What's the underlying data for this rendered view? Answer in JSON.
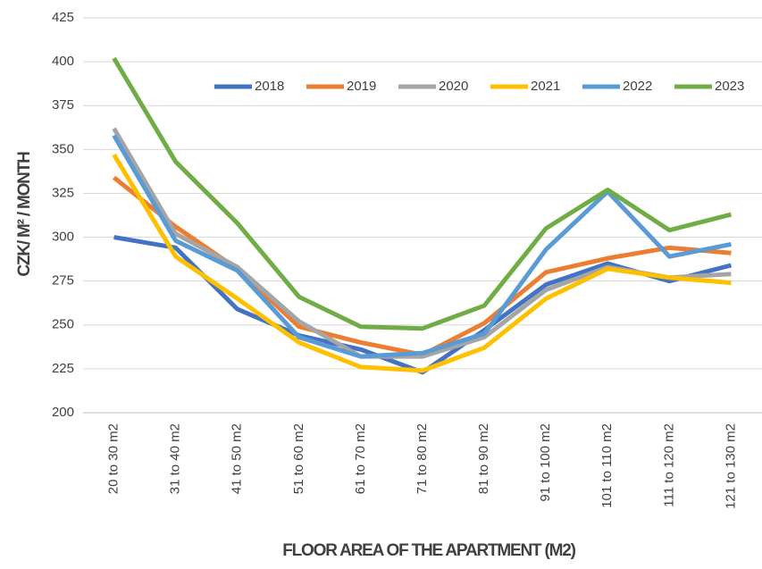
{
  "chart_data": {
    "type": "line",
    "ylabel": "CZK/ M² / MONTH",
    "xlabel": "FLOOR AREA OF THE APARTMENT (M2)",
    "categories": [
      "20 to 30 m2",
      "31 to 40 m2",
      "41 to 50 m2",
      "51 to 60 m2",
      "61 to 70 m2",
      "71 to 80 m2",
      "81 to 90 m2",
      "91 to 100 m2",
      "101 to 110 m2",
      "111 to 120 m2",
      "121 to 130 m2"
    ],
    "series": [
      {
        "name": "2018",
        "color": "#4472c4",
        "values": [
          300,
          294,
          259,
          244,
          236,
          223,
          247,
          273,
          285,
          275,
          284
        ]
      },
      {
        "name": "2019",
        "color": "#ed7d31",
        "values": [
          334,
          306,
          282,
          249,
          240,
          233,
          251,
          280,
          288,
          294,
          291
        ]
      },
      {
        "name": "2020",
        "color": "#a5a5a5",
        "values": [
          362,
          302,
          283,
          252,
          232,
          232,
          243,
          270,
          283,
          277,
          279
        ]
      },
      {
        "name": "2021",
        "color": "#ffc000",
        "values": [
          347,
          289,
          265,
          240,
          226,
          224,
          237,
          265,
          282,
          277,
          274
        ]
      },
      {
        "name": "2022",
        "color": "#5b9bd5",
        "values": [
          358,
          298,
          281,
          243,
          232,
          234,
          245,
          293,
          326,
          289,
          296
        ]
      },
      {
        "name": "2023",
        "color": "#70ad47",
        "values": [
          402,
          343,
          308,
          266,
          249,
          248,
          261,
          305,
          327,
          304,
          313
        ]
      }
    ],
    "ylim": [
      200,
      425
    ],
    "yticks": [
      200,
      225,
      250,
      275,
      300,
      325,
      350,
      375,
      400,
      425
    ],
    "grid": true,
    "legend": "top-right"
  }
}
